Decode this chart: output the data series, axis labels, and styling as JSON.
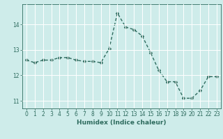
{
  "x": [
    0,
    1,
    2,
    3,
    4,
    5,
    6,
    7,
    8,
    9,
    10,
    11,
    12,
    13,
    14,
    15,
    16,
    17,
    18,
    19,
    20,
    21,
    22,
    23
  ],
  "y": [
    12.6,
    12.5,
    12.6,
    12.6,
    12.7,
    12.7,
    12.6,
    12.55,
    12.55,
    12.5,
    13.05,
    14.45,
    13.9,
    13.8,
    13.55,
    12.9,
    12.2,
    11.75,
    11.75,
    11.1,
    11.1,
    11.4,
    11.95,
    11.95
  ],
  "xlabel": "Humidex (Indice chaleur)",
  "ylabel": "",
  "xlim": [
    -0.5,
    23.5
  ],
  "ylim": [
    10.7,
    14.8
  ],
  "yticks": [
    11,
    12,
    13,
    14
  ],
  "xticks": [
    0,
    1,
    2,
    3,
    4,
    5,
    6,
    7,
    8,
    9,
    10,
    11,
    12,
    13,
    14,
    15,
    16,
    17,
    18,
    19,
    20,
    21,
    22,
    23
  ],
  "bg_color": "#ceecea",
  "line_color": "#2e6b5e",
  "marker_color": "#2e6b5e",
  "grid_color": "#ffffff",
  "tick_color": "#2e6b5e",
  "label_color": "#2e6b5e",
  "xlabel_fontsize": 6.5,
  "tick_fontsize": 5.5,
  "line_width": 1.0,
  "marker_size": 2.5
}
